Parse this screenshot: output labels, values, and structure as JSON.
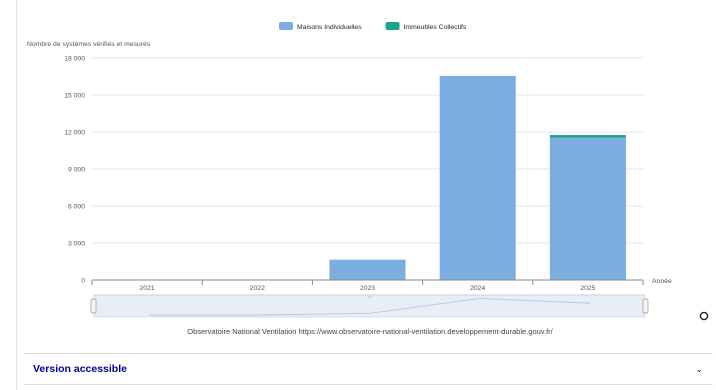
{
  "chart_data": {
    "type": "bar",
    "stacked": true,
    "title": "",
    "ylabel": "Nombre de systèmes vérifiés et mesurés",
    "xlabel": "Année",
    "categories": [
      "2021",
      "2022",
      "2023",
      "2024",
      "2025"
    ],
    "series": [
      {
        "name": "Maisons Individuelles",
        "color": "#7cade0",
        "values": [
          0,
          0,
          1650,
          16550,
          11550
        ]
      },
      {
        "name": "Immeubles Collectifs",
        "color": "#1aa388",
        "values": [
          0,
          0,
          0,
          0,
          200
        ]
      }
    ],
    "ylim": [
      0,
      18000
    ],
    "yticks": [
      "0",
      "3000",
      "6000",
      "9000",
      "12000",
      "15000",
      "18000"
    ],
    "grid": true,
    "legend": "top-center"
  },
  "navigator": {
    "label": "range-navigator"
  },
  "source_text": "Observatoire National Ventilation https://www.observatoire-national-ventilation.developpement-durable.gouv.fr/",
  "accessible": {
    "label": "Version accessible"
  },
  "icons": {
    "reset": "reset-zoom-icon",
    "chevron": "chevron-down-icon"
  }
}
